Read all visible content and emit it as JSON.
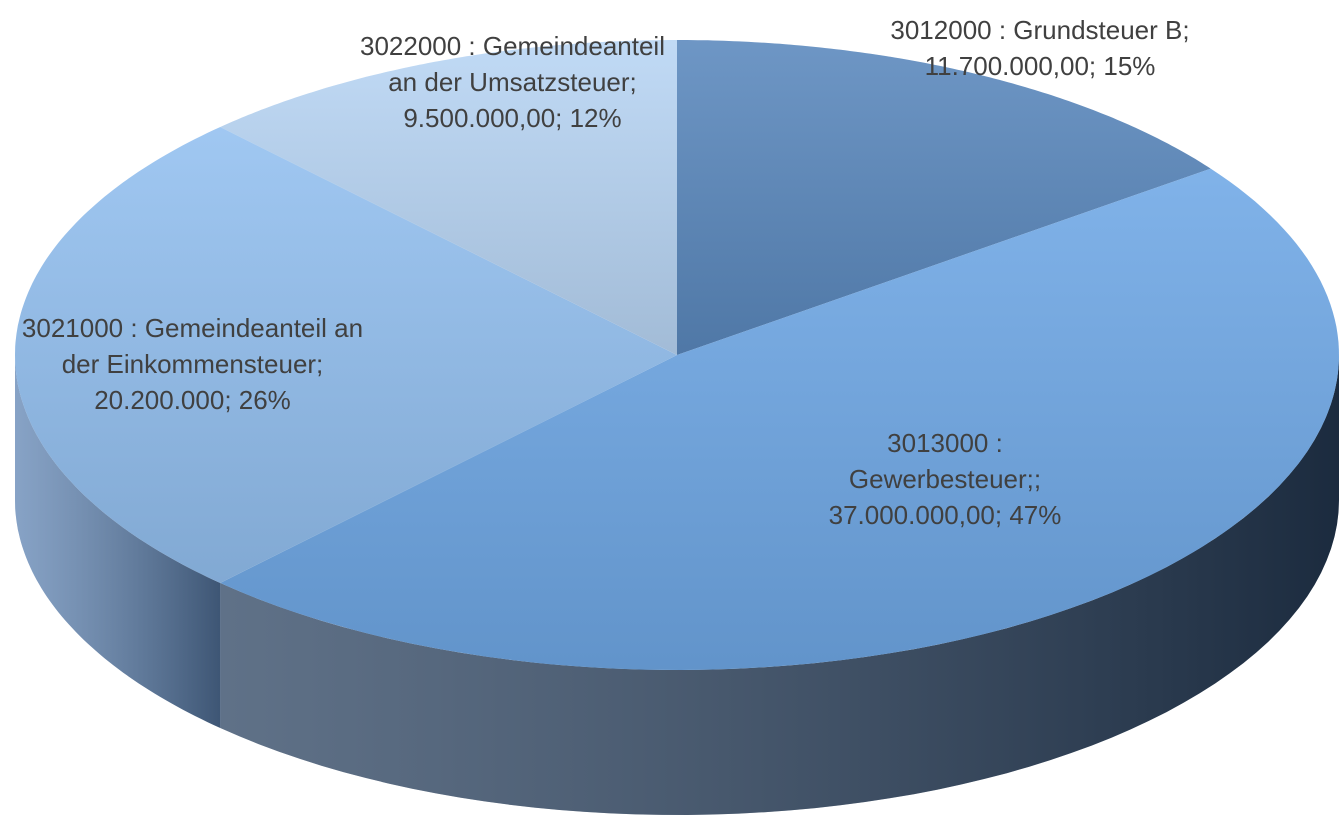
{
  "chart_data": {
    "type": "pie3d",
    "values": [
      11700000,
      37000000,
      20200000,
      9500000
    ],
    "value_labels": [
      "3012000 : Grundsteuer B; 11.700.000,00; 15%",
      "3013000 : Gewerbesteuer;; 37.000.000,00; 47%",
      "3021000 : Gemeindeanteil an der Einkommensteuer; 20.200.000; 26%",
      "3022000 : Gemeindeanteil an der Umsatzsteuer; 9.500.000,00; 12%"
    ],
    "colors": [
      "#5a88bd",
      "#6fa8e6",
      "#93c0f0",
      "#b8d5f4"
    ],
    "side_colors": [
      "#3f5f86",
      "#2a4260",
      "#5f84b3",
      "#7d9cc4"
    ],
    "start_angle": 90,
    "direction": "clockwise"
  }
}
